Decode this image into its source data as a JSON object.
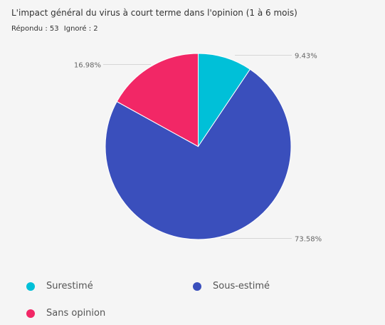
{
  "header": {
    "title": "L'impact général du virus à court terme dans l'opinion (1 à 6 mois)",
    "answered": "Répondu : 53",
    "ignored": "Ignoré : 2"
  },
  "chart_data": {
    "type": "pie",
    "title": "L'impact général du virus à court terme dans l'opinion (1 à 6 mois)",
    "slices": [
      {
        "name": "Surestimé",
        "value": 9.43,
        "label": "9.43%",
        "color": "#00c0d8"
      },
      {
        "name": "Sous-estimé",
        "value": 73.58,
        "label": "73.58%",
        "color": "#3a4fbc"
      },
      {
        "name": "Sans opinion",
        "value": 16.98,
        "label": "16.98%",
        "color": "#f22766"
      }
    ],
    "legend_position": "bottom"
  }
}
